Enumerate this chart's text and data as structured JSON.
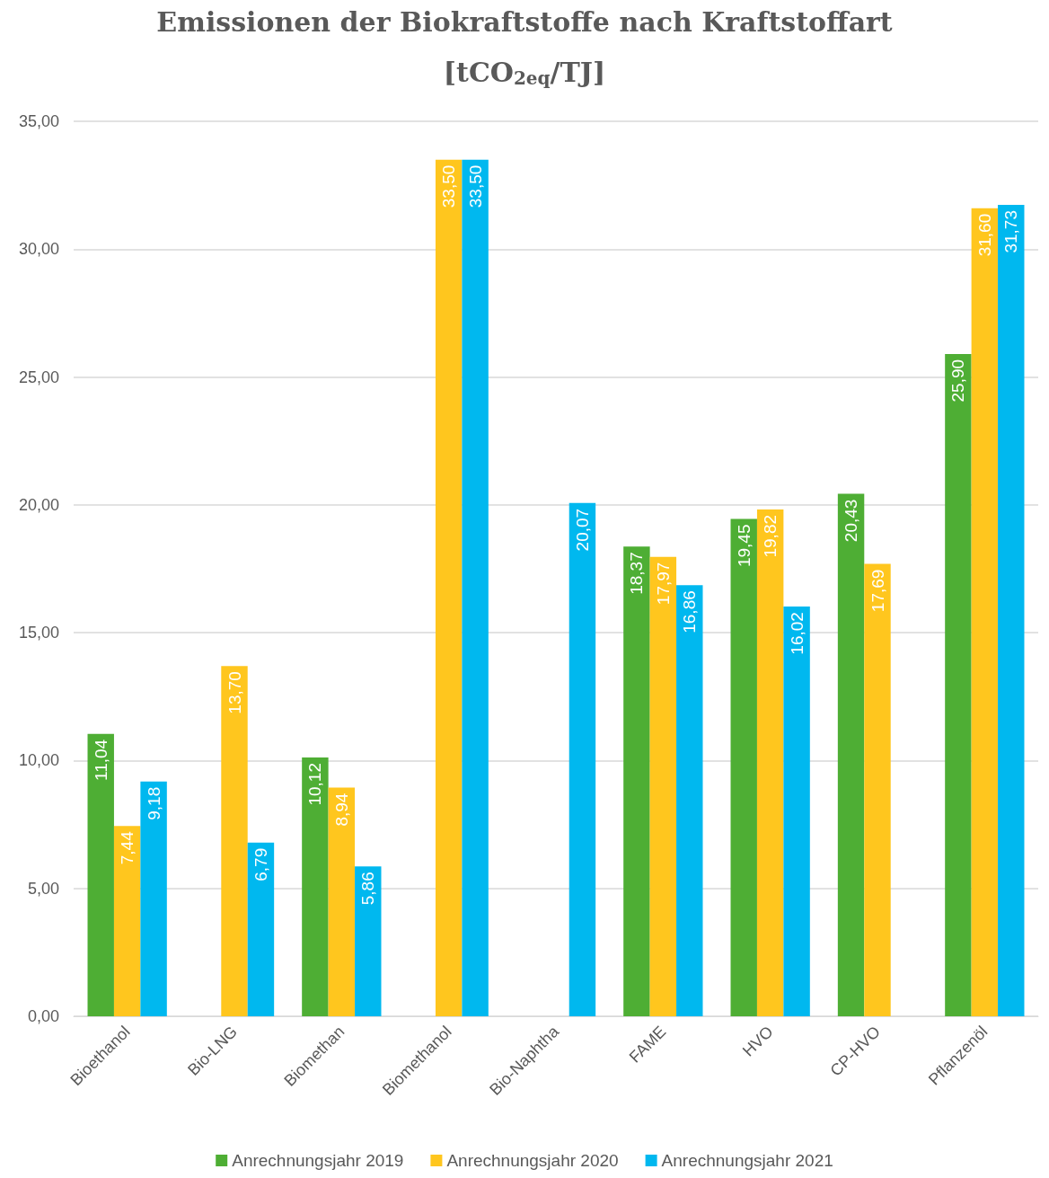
{
  "chart_data": {
    "type": "bar",
    "title": "Emissionen der Biokraftstoffe nach Kraftstoffart",
    "subtitle": "[tCO$_{2eq}$/TJ]",
    "categories": [
      "Bioethanol",
      "Bio-LNG",
      "Biomethan",
      "Biomethanol",
      "Bio-Naphtha",
      "FAME",
      "HVO",
      "CP-HVO",
      "Pflanzenöl"
    ],
    "series": [
      {
        "name": "Anrechnungsjahr 2019",
        "color": "#4eae34",
        "values": [
          11.04,
          null,
          10.12,
          null,
          null,
          18.37,
          19.45,
          20.43,
          25.9
        ],
        "value_labels": [
          "11,04",
          null,
          "10,12",
          null,
          null,
          "18,37",
          "19,45",
          "20,43",
          "25,90"
        ]
      },
      {
        "name": "Anrechnungsjahr 2020",
        "color": "#ffc61e",
        "values": [
          7.44,
          13.7,
          8.94,
          33.5,
          null,
          17.97,
          19.82,
          17.69,
          31.6
        ],
        "value_labels": [
          "7,44",
          "13,70",
          "8,94",
          "33,50",
          null,
          "17,97",
          "19,82",
          "17,69",
          "31,60"
        ]
      },
      {
        "name": "Anrechnungsjahr 2021",
        "color": "#00b8ef",
        "values": [
          9.18,
          6.79,
          5.86,
          33.5,
          20.07,
          16.86,
          16.02,
          null,
          31.73
        ],
        "value_labels": [
          "9,18",
          "6,79",
          "5,86",
          "33,50",
          "20,07",
          "16,86",
          "16,02",
          null,
          "31,73"
        ]
      }
    ],
    "ylim": [
      0,
      35
    ],
    "yticks": [
      {
        "value": 0,
        "label": "0,00"
      },
      {
        "value": 5,
        "label": "5,00"
      },
      {
        "value": 10,
        "label": "10,00"
      },
      {
        "value": 15,
        "label": "15,00"
      },
      {
        "value": 20,
        "label": "20,00"
      },
      {
        "value": 25,
        "label": "25,00"
      },
      {
        "value": 30,
        "label": "30,00"
      },
      {
        "value": 35,
        "label": "35,00"
      }
    ],
    "grid": "y",
    "legend": "bottom"
  }
}
